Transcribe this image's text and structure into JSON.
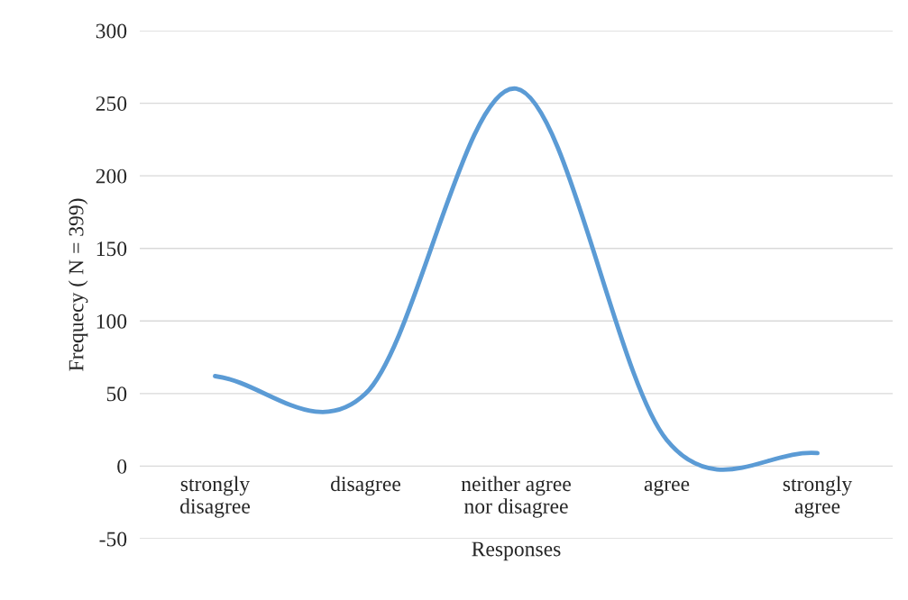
{
  "chart_data": {
    "type": "line",
    "xlabel": "Responses",
    "ylabel": "Frequecy ( N = 399)",
    "categories": [
      "strongly\ndisagree",
      "disagree",
      "neither agree\nnor disagree",
      "agree",
      "strongly\nagree"
    ],
    "series": [
      {
        "color": "#5b9bd5",
        "values": [
          62,
          50,
          260,
          18,
          9
        ]
      }
    ],
    "ylim": [
      -50,
      300
    ],
    "yticks": [
      -50,
      0,
      50,
      100,
      150,
      200,
      250,
      300
    ],
    "grid": "y",
    "marker": "none",
    "line_style": "solid"
  }
}
